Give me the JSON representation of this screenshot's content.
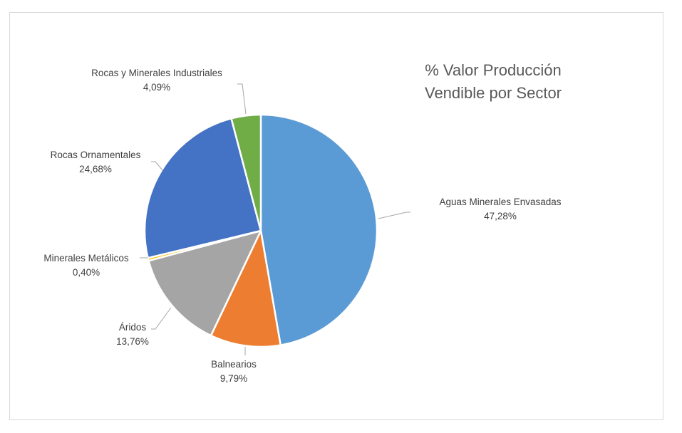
{
  "chart_data": {
    "type": "pie",
    "title_lines": [
      "%  Valor Producción",
      "Vendible por Sector"
    ],
    "slices": [
      {
        "name": "Aguas Minerales Envasadas",
        "value": 47.28,
        "label": "47,28%",
        "color": "#5B9BD5"
      },
      {
        "name": "Balnearios",
        "value": 9.79,
        "label": "9,79%",
        "color": "#ED7D31"
      },
      {
        "name": "Áridos",
        "value": 13.76,
        "label": "13,76%",
        "color": "#A5A5A5"
      },
      {
        "name": "Minerales Metálicos",
        "value": 0.4,
        "label": "0,40%",
        "color": "#FFC000"
      },
      {
        "name": "Rocas Ornamentales",
        "value": 24.68,
        "label": "24,68%",
        "color": "#4472C4"
      },
      {
        "name": "Rocas y Minerales Industriales",
        "value": 4.09,
        "label": "4,09%",
        "color": "#70AD47"
      }
    ],
    "start_angle_deg": 0,
    "direction": "clockwise",
    "legend": "none",
    "leader_line_color": "#A6A6A6",
    "slice_border_color": "#FFFFFF"
  }
}
